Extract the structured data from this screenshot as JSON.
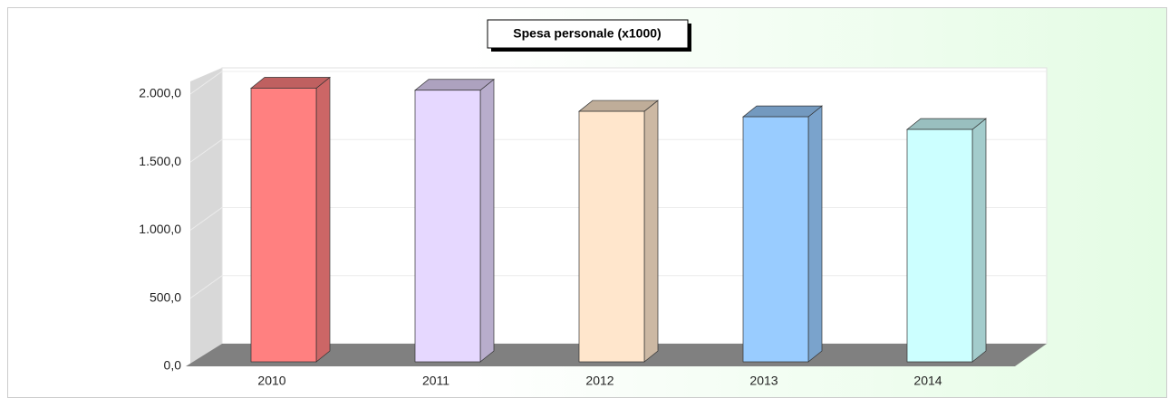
{
  "chart_data": {
    "type": "bar3d",
    "title": "Spesa personale (x1000)",
    "categories": [
      "2010",
      "2011",
      "2012",
      "2013",
      "2014"
    ],
    "values": [
      2010,
      1995,
      1840,
      1800,
      1707
    ],
    "colors": [
      "#ff8080",
      "#e6d8ff",
      "#ffe6cc",
      "#99ccff",
      "#ccffff"
    ],
    "ylim": [
      0,
      2000
    ],
    "yticks": [
      {
        "value": 0,
        "label": "0,0"
      },
      {
        "value": 500,
        "label": "500,0"
      },
      {
        "value": 1000,
        "label": "1.000,0"
      },
      {
        "value": 1500,
        "label": "1.500,0"
      },
      {
        "value": 2000,
        "label": "2.000,0"
      }
    ],
    "grid": true
  }
}
